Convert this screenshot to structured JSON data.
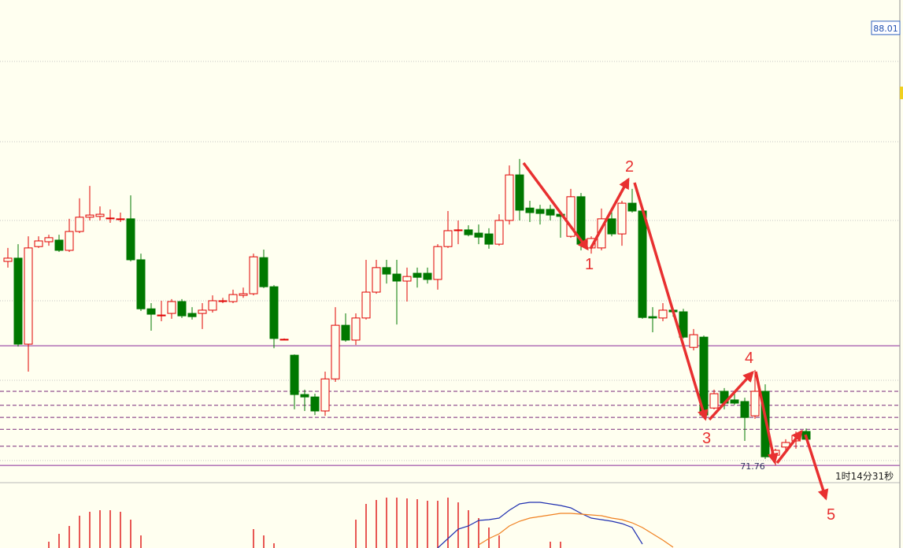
{
  "chart_data": {
    "type": "candlestick",
    "ylim": [
      71.12,
      89.03
    ],
    "up_color": "#e00000",
    "down_color": "#007800",
    "ohlc": [
      [
        79.33,
        79.83,
        79.1,
        79.45
      ],
      [
        79.45,
        79.97,
        76.17,
        76.26
      ],
      [
        76.26,
        80.26,
        75.24,
        79.83
      ],
      [
        79.88,
        80.26,
        79.83,
        80.09
      ],
      [
        80.06,
        80.32,
        79.91,
        80.21
      ],
      [
        80.12,
        80.32,
        79.68,
        79.74
      ],
      [
        79.74,
        80.91,
        79.68,
        80.44
      ],
      [
        80.44,
        81.67,
        80.38,
        80.97
      ],
      [
        80.97,
        82.13,
        80.85,
        81.05
      ],
      [
        81.0,
        81.37,
        80.85,
        81.08
      ],
      [
        80.94,
        81.26,
        80.76,
        80.94
      ],
      [
        80.91,
        81.14,
        80.79,
        80.91
      ],
      [
        80.91,
        81.78,
        79.33,
        79.39
      ],
      [
        79.39,
        79.62,
        77.49,
        77.57
      ],
      [
        77.57,
        77.78,
        76.76,
        77.37
      ],
      [
        77.31,
        77.87,
        77.11,
        77.34
      ],
      [
        77.4,
        77.93,
        77.2,
        77.84
      ],
      [
        77.84,
        77.93,
        77.23,
        77.31
      ],
      [
        77.4,
        77.63,
        77.17,
        77.28
      ],
      [
        77.4,
        77.78,
        76.82,
        77.52
      ],
      [
        77.52,
        78.07,
        77.43,
        77.87
      ],
      [
        77.87,
        77.98,
        77.78,
        77.87
      ],
      [
        77.84,
        78.28,
        77.78,
        78.1
      ],
      [
        78.07,
        78.36,
        77.98,
        78.13
      ],
      [
        78.13,
        79.62,
        78.07,
        79.5
      ],
      [
        79.47,
        79.77,
        78.34,
        78.39
      ],
      [
        78.39,
        78.45,
        76.11,
        76.47
      ],
      [
        76.44,
        76.47,
        76.41,
        76.44
      ],
      [
        75.85,
        75.88,
        73.84,
        74.39
      ],
      [
        74.39,
        74.57,
        73.78,
        74.3
      ],
      [
        74.3,
        74.42,
        73.63,
        73.78
      ],
      [
        73.78,
        75.24,
        73.6,
        74.97
      ],
      [
        74.97,
        77.63,
        74.86,
        76.96
      ],
      [
        76.96,
        77.4,
        76.35,
        76.41
      ],
      [
        76.41,
        77.4,
        76.23,
        77.23
      ],
      [
        77.23,
        79.39,
        77.17,
        78.19
      ],
      [
        78.19,
        79.39,
        78.13,
        79.1
      ],
      [
        79.1,
        79.39,
        78.51,
        78.86
      ],
      [
        78.86,
        79.39,
        76.99,
        78.6
      ],
      [
        78.6,
        79.1,
        77.84,
        78.77
      ],
      [
        78.89,
        79.1,
        78.36,
        78.74
      ],
      [
        78.89,
        79.1,
        78.51,
        78.66
      ],
      [
        78.66,
        79.97,
        78.28,
        79.88
      ],
      [
        79.88,
        81.2,
        79.83,
        80.47
      ],
      [
        80.47,
        80.85,
        79.97,
        80.5
      ],
      [
        80.5,
        80.67,
        80.26,
        80.32
      ],
      [
        80.38,
        80.7,
        79.97,
        80.23
      ],
      [
        80.35,
        80.56,
        79.8,
        79.97
      ],
      [
        79.97,
        81.08,
        79.91,
        80.85
      ],
      [
        80.85,
        82.89,
        80.7,
        82.54
      ],
      [
        82.54,
        83.13,
        80.85,
        81.23
      ],
      [
        81.31,
        81.58,
        80.79,
        81.14
      ],
      [
        81.26,
        81.43,
        80.7,
        81.11
      ],
      [
        81.26,
        81.43,
        80.85,
        81.05
      ],
      [
        81.08,
        81.2,
        80.21,
        81.0
      ],
      [
        80.26,
        82.02,
        80.21,
        81.73
      ],
      [
        81.73,
        81.87,
        79.74,
        79.97
      ],
      [
        79.83,
        80.26,
        79.62,
        80.18
      ],
      [
        79.83,
        81.29,
        79.74,
        80.91
      ],
      [
        80.91,
        81.2,
        80.26,
        80.35
      ],
      [
        80.35,
        81.58,
        79.91,
        81.49
      ],
      [
        81.49,
        82.02,
        81.14,
        81.2
      ],
      [
        81.2,
        81.29,
        77.2,
        77.25
      ],
      [
        77.28,
        77.63,
        76.7,
        77.23
      ],
      [
        77.23,
        77.78,
        77.11,
        77.52
      ],
      [
        77.52,
        77.57,
        77.28,
        77.46
      ],
      [
        77.46,
        77.57,
        76.47,
        76.52
      ],
      [
        76.14,
        76.82,
        76.03,
        76.61
      ],
      [
        76.52,
        76.58,
        73.54,
        73.63
      ],
      [
        73.89,
        74.57,
        73.84,
        74.42
      ],
      [
        74.51,
        74.63,
        73.84,
        74.07
      ],
      [
        74.19,
        74.42,
        74.01,
        74.07
      ],
      [
        74.13,
        74.27,
        72.67,
        73.54
      ],
      [
        73.6,
        75.3,
        73.49,
        74.51
      ],
      [
        74.51,
        74.77,
        72.0,
        72.08
      ],
      [
        72.14,
        72.38,
        71.76,
        72.32
      ],
      [
        72.44,
        72.73,
        72.23,
        72.61
      ],
      [
        72.67,
        73.02,
        72.38,
        72.87
      ],
      [
        73.02,
        73.13,
        72.67,
        72.73
      ]
    ],
    "grid": true,
    "grid_levels": [
      86.75,
      83.77,
      80.85,
      77.87,
      74.92,
      71.94
    ],
    "support_lines": [
      76.2,
      71.76
    ],
    "dashed_levels": [
      74.51,
      73.99,
      73.54,
      73.1,
      72.47
    ],
    "price_tags": [
      88.01,
      71.76
    ],
    "wave_labels": [
      "1",
      "2",
      "3",
      "4",
      "5"
    ],
    "countdown": "1时14分31秒",
    "indicator": {
      "ylim": [
        0,
        83
      ],
      "histogram_color": "#e02020",
      "histogram": [
        null,
        null,
        null,
        null,
        8,
        18,
        28,
        41,
        46,
        48,
        48,
        46,
        36,
        16,
        null,
        null,
        null,
        null,
        null,
        null,
        null,
        null,
        null,
        null,
        24,
        16,
        6,
        null,
        null,
        null,
        null,
        null,
        null,
        null,
        36,
        56,
        61,
        64,
        64,
        63,
        62,
        60,
        60,
        64,
        58,
        48,
        38,
        26,
        16,
        null,
        null,
        null,
        null,
        8,
        8,
        null,
        null,
        null,
        null,
        null,
        null,
        null,
        null,
        null,
        null,
        null,
        null,
        null,
        null,
        null,
        null,
        null,
        null,
        null,
        null,
        null,
        null,
        null,
        null
      ],
      "lines": [
        {
          "color": "#2030b0",
          "values": [
            null,
            null,
            null,
            null,
            null,
            null,
            null,
            null,
            null,
            null,
            null,
            null,
            null,
            null,
            null,
            null,
            null,
            null,
            null,
            null,
            null,
            null,
            null,
            null,
            null,
            null,
            null,
            null,
            null,
            null,
            null,
            null,
            null,
            null,
            null,
            null,
            null,
            null,
            null,
            null,
            null,
            null,
            0,
            12,
            24,
            28,
            35,
            36,
            38,
            48,
            56,
            58,
            58,
            56,
            54,
            51,
            44,
            38,
            36,
            34,
            31,
            26,
            5,
            null,
            null,
            null,
            null,
            null,
            null,
            null,
            null,
            null,
            null,
            null,
            null,
            null,
            null,
            null,
            null
          ]
        },
        {
          "color": "#f08020",
          "values": [
            null,
            null,
            null,
            null,
            null,
            null,
            null,
            null,
            null,
            null,
            null,
            null,
            null,
            null,
            null,
            null,
            null,
            null,
            null,
            null,
            null,
            null,
            null,
            null,
            null,
            null,
            null,
            null,
            null,
            null,
            null,
            null,
            null,
            null,
            null,
            null,
            null,
            null,
            null,
            null,
            null,
            null,
            null,
            null,
            null,
            null,
            4,
            12,
            18,
            28,
            34,
            38,
            40,
            42,
            44,
            44,
            43,
            42,
            41,
            38,
            36,
            32,
            26,
            18,
            10,
            1,
            null,
            null,
            null,
            null,
            null,
            null,
            null,
            null,
            null,
            null,
            null,
            null,
            null
          ]
        }
      ]
    }
  }
}
